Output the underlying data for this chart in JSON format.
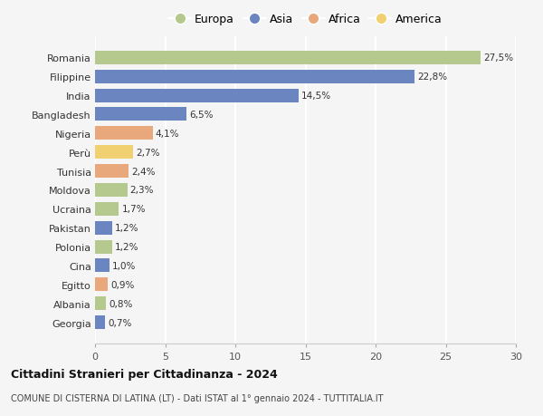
{
  "countries": [
    "Romania",
    "Filippine",
    "India",
    "Bangladesh",
    "Nigeria",
    "Perù",
    "Tunisia",
    "Moldova",
    "Ucraina",
    "Pakistan",
    "Polonia",
    "Cina",
    "Egitto",
    "Albania",
    "Georgia"
  ],
  "values": [
    27.5,
    22.8,
    14.5,
    6.5,
    4.1,
    2.7,
    2.4,
    2.3,
    1.7,
    1.2,
    1.2,
    1.0,
    0.9,
    0.8,
    0.7
  ],
  "labels": [
    "27,5%",
    "22,8%",
    "14,5%",
    "6,5%",
    "4,1%",
    "2,7%",
    "2,4%",
    "2,3%",
    "1,7%",
    "1,2%",
    "1,2%",
    "1,0%",
    "0,9%",
    "0,8%",
    "0,7%"
  ],
  "continents": [
    "Europa",
    "Asia",
    "Asia",
    "Asia",
    "Africa",
    "America",
    "Africa",
    "Europa",
    "Europa",
    "Asia",
    "Europa",
    "Asia",
    "Africa",
    "Europa",
    "Asia"
  ],
  "continent_colors": {
    "Europa": "#b5c98e",
    "Asia": "#6b85c0",
    "Africa": "#e8a87c",
    "America": "#f0d070"
  },
  "legend_order": [
    "Europa",
    "Asia",
    "Africa",
    "America"
  ],
  "title": "Cittadini Stranieri per Cittadinanza - 2024",
  "subtitle": "COMUNE DI CISTERNA DI LATINA (LT) - Dati ISTAT al 1° gennaio 2024 - TUTTITALIA.IT",
  "xlim": [
    0,
    30
  ],
  "xticks": [
    0,
    5,
    10,
    15,
    20,
    25,
    30
  ],
  "background_color": "#f5f5f5",
  "grid_color": "#ffffff",
  "bar_height": 0.72
}
